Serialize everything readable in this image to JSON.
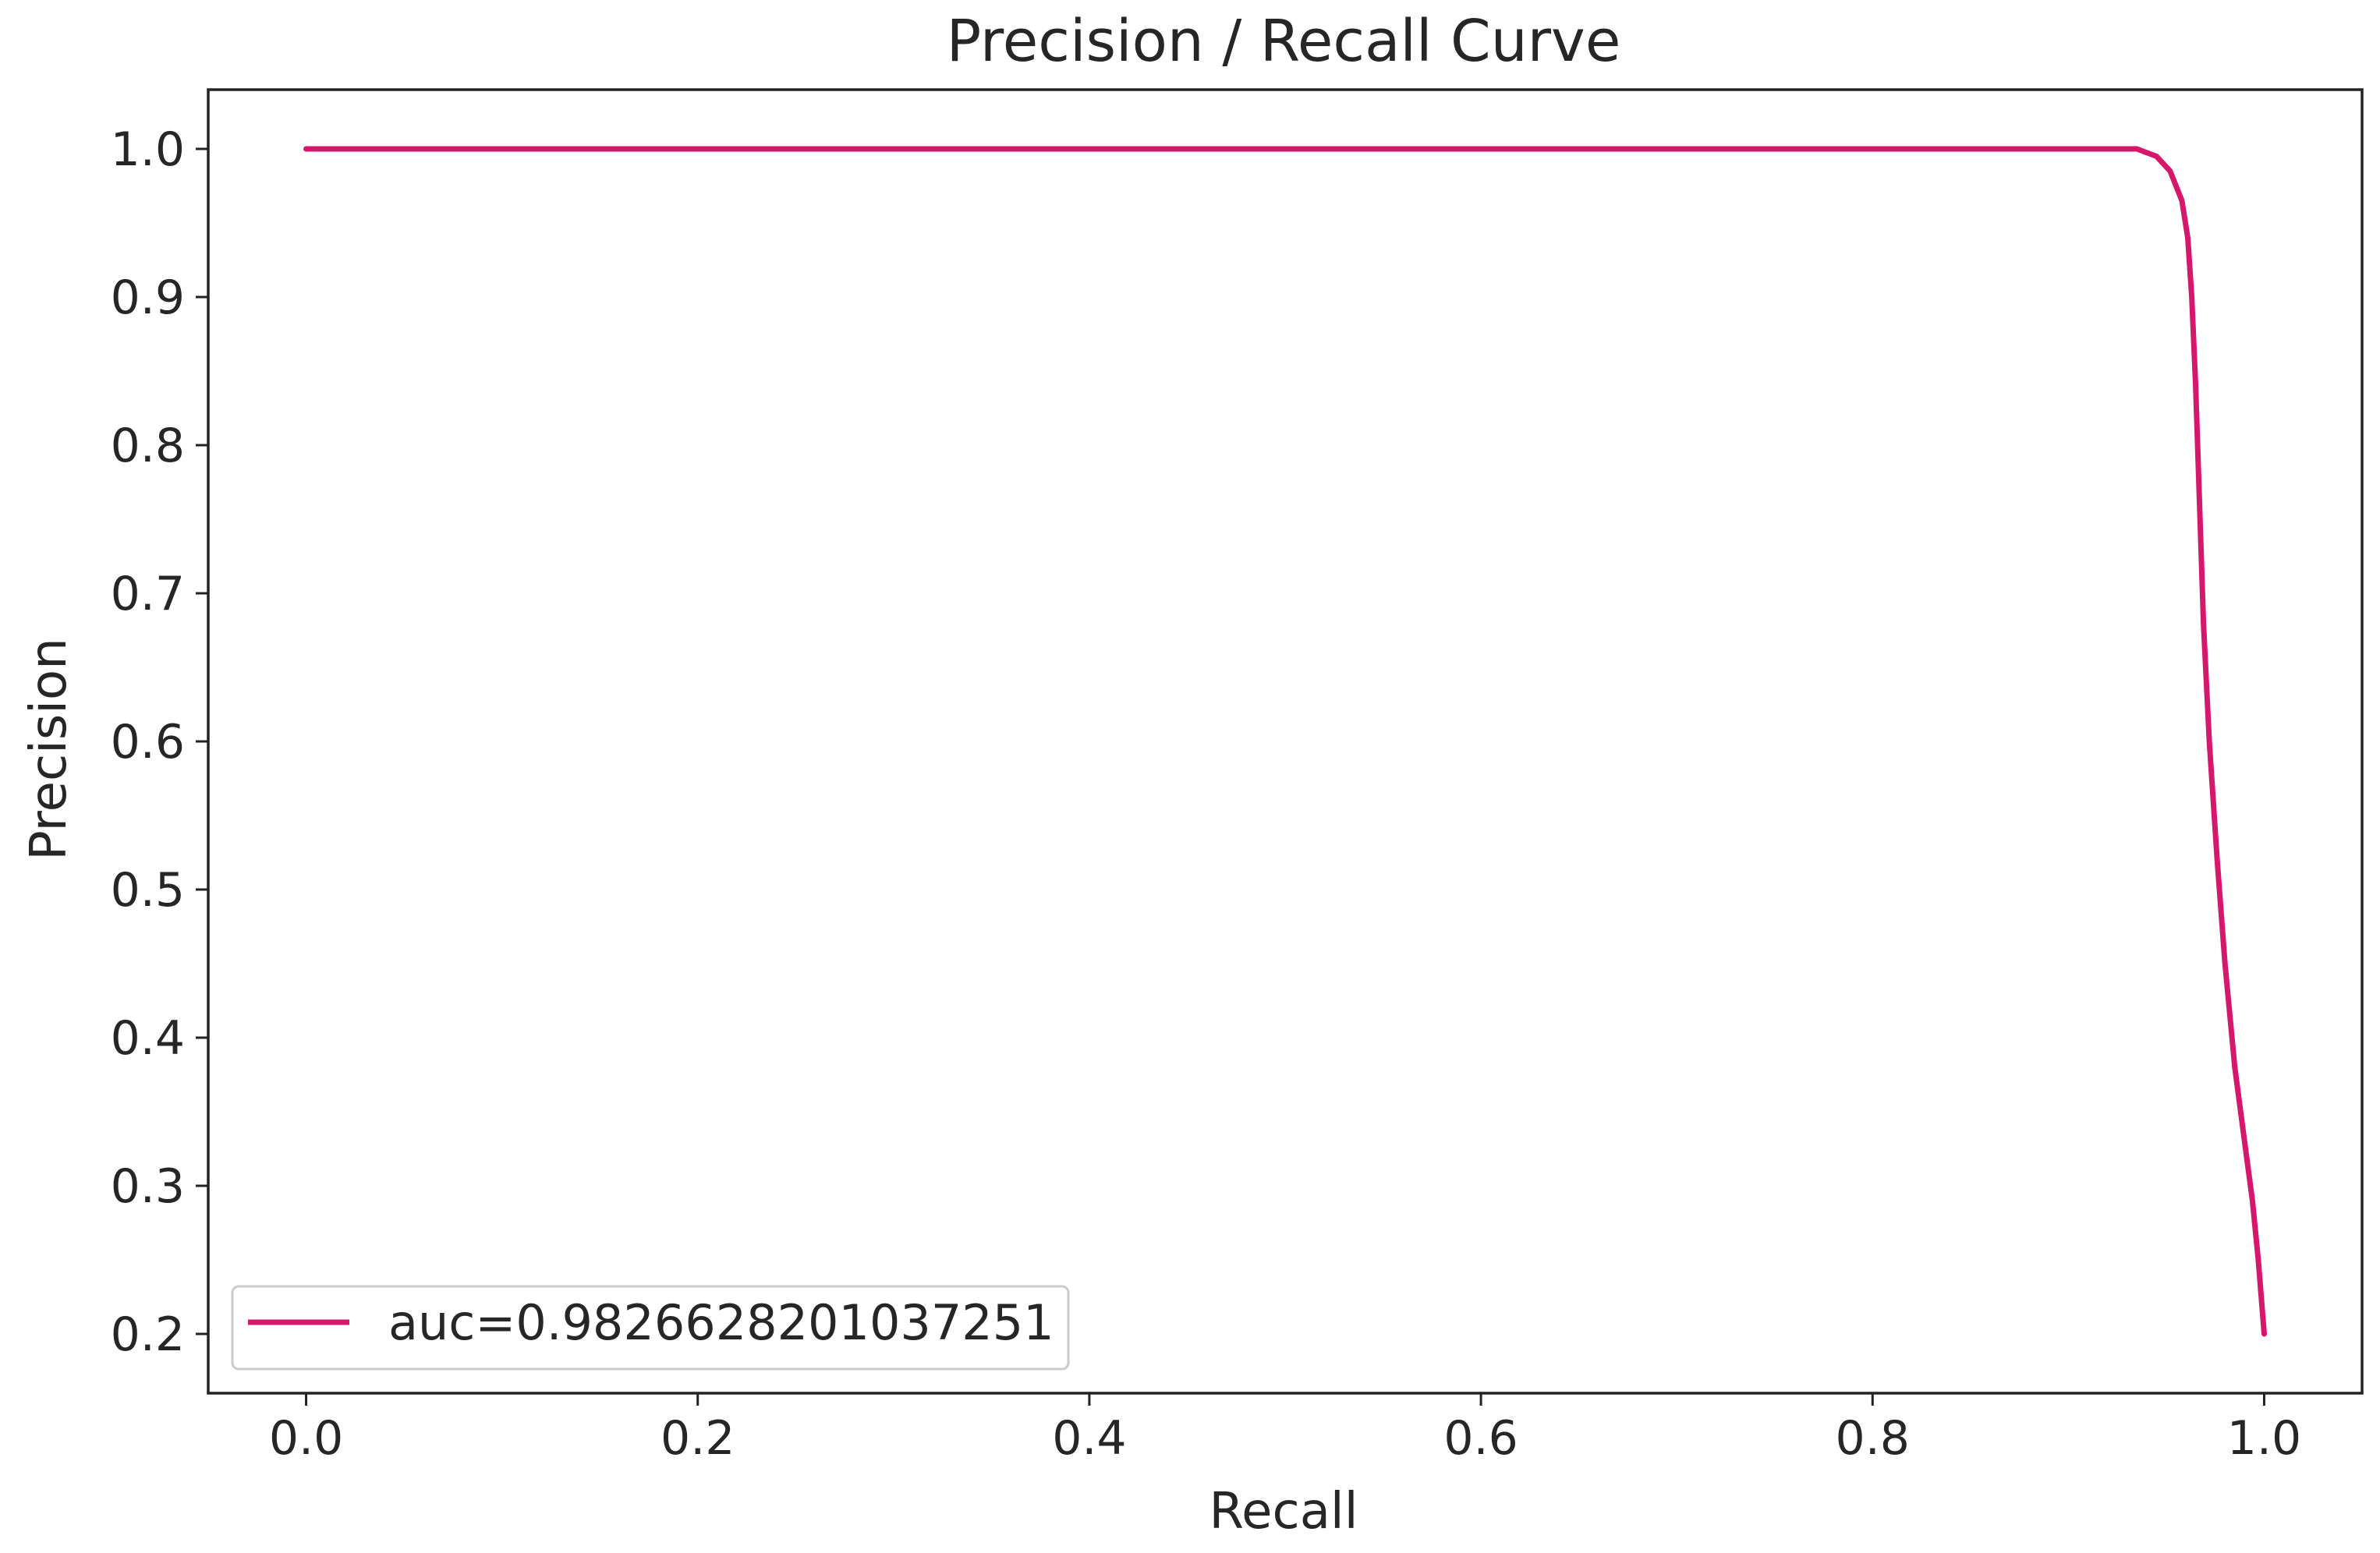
{
  "chart_data": {
    "type": "line",
    "title": "Precision / Recall Curve",
    "xlabel": "Recall",
    "ylabel": "Precision",
    "xlim": [
      -0.05,
      1.05
    ],
    "ylim": [
      0.16,
      1.04
    ],
    "xticks": [
      0.0,
      0.2,
      0.4,
      0.6,
      0.8,
      1.0
    ],
    "xtick_labels": [
      "0.0",
      "0.2",
      "0.4",
      "0.6",
      "0.8",
      "1.0"
    ],
    "yticks": [
      0.2,
      0.3,
      0.4,
      0.5,
      0.6,
      0.7,
      0.8,
      0.9,
      1.0
    ],
    "ytick_labels": [
      "0.2",
      "0.3",
      "0.4",
      "0.5",
      "0.6",
      "0.7",
      "0.8",
      "0.9",
      "1.0"
    ],
    "grid": false,
    "legend_position": "lower-left",
    "series": [
      {
        "name": "auc=0.9826628201037251",
        "color": "#d6186c",
        "x": [
          0.0,
          0.2,
          0.4,
          0.6,
          0.8,
          0.935,
          0.945,
          0.952,
          0.958,
          0.961,
          0.963,
          0.965,
          0.967,
          0.969,
          0.972,
          0.976,
          0.98,
          0.985,
          0.99,
          0.994,
          0.997,
          1.0
        ],
        "y": [
          1.0,
          1.0,
          1.0,
          1.0,
          1.0,
          1.0,
          0.995,
          0.985,
          0.965,
          0.94,
          0.9,
          0.84,
          0.76,
          0.68,
          0.6,
          0.52,
          0.45,
          0.38,
          0.33,
          0.29,
          0.25,
          0.2
        ]
      }
    ]
  }
}
